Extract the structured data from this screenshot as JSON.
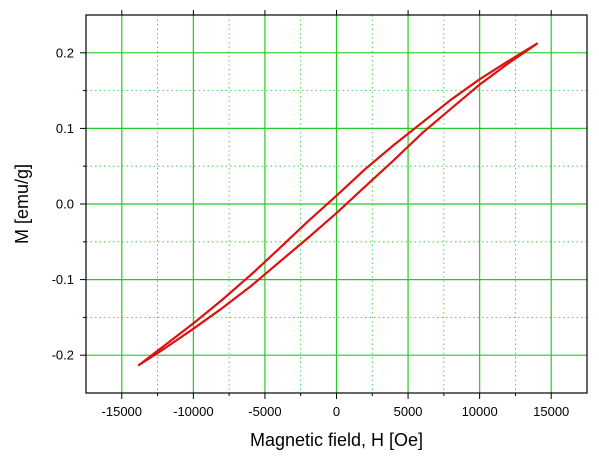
{
  "chart_data": {
    "type": "line",
    "title": "",
    "xlabel": "Magnetic field, H [Oe]",
    "ylabel": "M [emu/g]",
    "xlim": [
      -17500,
      17500
    ],
    "ylim": [
      -0.25,
      0.25
    ],
    "x_ticks": [
      -15000,
      -10000,
      -5000,
      0,
      5000,
      10000,
      15000
    ],
    "x_tick_labels": [
      "-15000",
      "-10000",
      "-5000",
      "0",
      "5000",
      "10000",
      "15000"
    ],
    "y_ticks": [
      -0.2,
      -0.1,
      0.0,
      0.1,
      0.2
    ],
    "y_tick_labels": [
      "-0.2",
      "-0.1",
      "0.0",
      "0.1",
      "0.2"
    ],
    "major_grid": true,
    "minor_grid": true,
    "grid_color": "#22cc22",
    "series": [
      {
        "color": "#dd1111",
        "x": [
          -13800,
          -12000,
          -10000,
          -8000,
          -6000,
          -4000,
          -2000,
          0,
          2000,
          4000,
          6000,
          8000,
          10000,
          12000,
          14000
        ],
        "values": [
          -0.213,
          -0.191,
          -0.165,
          -0.138,
          -0.109,
          -0.077,
          -0.045,
          -0.012,
          0.023,
          0.058,
          0.094,
          0.126,
          0.158,
          0.186,
          0.212
        ]
      },
      {
        "color": "#dd1111",
        "x": [
          14000,
          12000,
          10000,
          8000,
          6000,
          4000,
          2000,
          0,
          -2000,
          -4000,
          -6000,
          -8000,
          -10000,
          -12000,
          -13800
        ],
        "values": [
          0.212,
          0.189,
          0.165,
          0.138,
          0.108,
          0.078,
          0.046,
          0.011,
          -0.023,
          -0.059,
          -0.094,
          -0.127,
          -0.158,
          -0.187,
          -0.213
        ]
      }
    ]
  }
}
